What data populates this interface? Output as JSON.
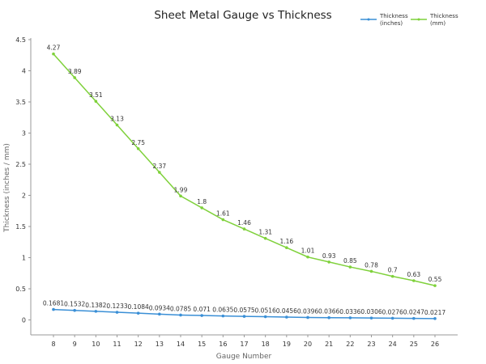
{
  "chart_data": {
    "type": "line",
    "title": "Sheet Metal Gauge vs Thickness",
    "xlabel": "Gauge Number",
    "ylabel": "Thickness (inches / mm)",
    "x": [
      8,
      9,
      10,
      11,
      12,
      13,
      14,
      15,
      16,
      17,
      18,
      19,
      20,
      21,
      22,
      23,
      24,
      25,
      26
    ],
    "ylim": [
      -0.24,
      4.5
    ],
    "yticks": [
      0,
      0.5,
      1,
      1.5,
      2,
      2.5,
      3,
      3.5,
      4,
      4.5
    ],
    "ytick_labels": [
      "0",
      "0.5",
      "1",
      "1.5",
      "2",
      "2.5",
      "3",
      "3.5",
      "4",
      "4.5"
    ],
    "grid": false,
    "legend_position": "top-right",
    "series": [
      {
        "name": "Thickness (inches)",
        "name_lines": [
          "Thickness",
          "(inches)"
        ],
        "color": "#3a8fd6",
        "values": [
          0.1681,
          0.1532,
          0.1382,
          0.1233,
          0.1084,
          0.0934,
          0.0785,
          0.071,
          0.0635,
          0.0575,
          0.0516,
          0.0456,
          0.0396,
          0.0366,
          0.0336,
          0.0306,
          0.0276,
          0.0247,
          0.0217
        ]
      },
      {
        "name": "Thickness (mm)",
        "name_lines": [
          "Thickness",
          "(mm)"
        ],
        "color": "#7fd13b",
        "values": [
          4.27,
          3.89,
          3.51,
          3.13,
          2.75,
          2.37,
          1.99,
          1.8,
          1.61,
          1.46,
          1.31,
          1.16,
          1.01,
          0.93,
          0.85,
          0.78,
          0.7,
          0.63,
          0.55
        ]
      }
    ]
  }
}
